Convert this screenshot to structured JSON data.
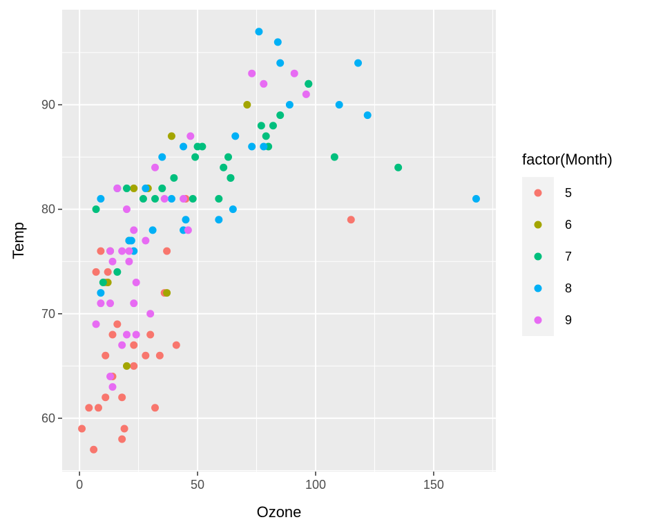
{
  "chart_data": {
    "type": "scatter",
    "title": "",
    "xlabel": "Ozone",
    "ylabel": "Temp",
    "xlim": [
      -7.35,
      176.35
    ],
    "ylim": [
      54.9,
      99.1
    ],
    "x_ticks": [
      0,
      50,
      100,
      150
    ],
    "y_ticks": [
      60,
      70,
      80,
      90
    ],
    "grid": true,
    "legend_position": "right",
    "legend_title": "factor(Month)",
    "series": [
      {
        "name": "5",
        "color": "#F8766D",
        "points": [
          [
            41,
            67
          ],
          [
            36,
            72
          ],
          [
            12,
            74
          ],
          [
            18,
            62
          ],
          [
            28,
            66
          ],
          [
            23,
            65
          ],
          [
            19,
            59
          ],
          [
            8,
            61
          ],
          [
            7,
            74
          ],
          [
            16,
            69
          ],
          [
            11,
            66
          ],
          [
            14,
            68
          ],
          [
            18,
            58
          ],
          [
            14,
            64
          ],
          [
            34,
            66
          ],
          [
            6,
            57
          ],
          [
            30,
            68
          ],
          [
            11,
            62
          ],
          [
            1,
            59
          ],
          [
            11,
            73
          ],
          [
            4,
            61
          ],
          [
            32,
            61
          ],
          [
            37,
            76
          ],
          [
            45,
            81
          ],
          [
            115,
            79
          ],
          [
            23,
            67
          ],
          [
            9,
            76
          ]
        ]
      },
      {
        "name": "6",
        "color": "#A3A500",
        "points": [
          [
            29,
            82
          ],
          [
            71,
            90
          ],
          [
            39,
            87
          ],
          [
            23,
            82
          ],
          [
            21,
            77
          ],
          [
            37,
            72
          ],
          [
            20,
            65
          ],
          [
            12,
            73
          ],
          [
            13,
            76
          ]
        ]
      },
      {
        "name": "7",
        "color": "#00BF7D",
        "points": [
          [
            135,
            84
          ],
          [
            49,
            85
          ],
          [
            32,
            81
          ],
          [
            64,
            83
          ],
          [
            40,
            83
          ],
          [
            77,
            88
          ],
          [
            97,
            92
          ],
          [
            97,
            92
          ],
          [
            85,
            89
          ],
          [
            10,
            73
          ],
          [
            27,
            81
          ],
          [
            7,
            80
          ],
          [
            48,
            81
          ],
          [
            35,
            82
          ],
          [
            61,
            84
          ],
          [
            79,
            87
          ],
          [
            63,
            85
          ],
          [
            16,
            74
          ],
          [
            80,
            86
          ],
          [
            108,
            85
          ],
          [
            20,
            82
          ],
          [
            52,
            86
          ],
          [
            82,
            88
          ],
          [
            50,
            86
          ],
          [
            64,
            83
          ],
          [
            59,
            81
          ]
        ]
      },
      {
        "name": "8",
        "color": "#00B0F6",
        "points": [
          [
            39,
            81
          ],
          [
            9,
            81
          ],
          [
            16,
            82
          ],
          [
            78,
            86
          ],
          [
            35,
            85
          ],
          [
            66,
            87
          ],
          [
            122,
            89
          ],
          [
            89,
            90
          ],
          [
            110,
            90
          ],
          [
            44,
            86
          ],
          [
            28,
            82
          ],
          [
            65,
            80
          ],
          [
            22,
            77
          ],
          [
            59,
            79
          ],
          [
            23,
            76
          ],
          [
            31,
            78
          ],
          [
            44,
            78
          ],
          [
            21,
            77
          ],
          [
            9,
            72
          ],
          [
            45,
            79
          ],
          [
            168,
            81
          ],
          [
            73,
            86
          ],
          [
            76,
            97
          ],
          [
            118,
            94
          ],
          [
            84,
            96
          ],
          [
            85,
            94
          ]
        ]
      },
      {
        "name": "9",
        "color": "#E76BF3",
        "points": [
          [
            96,
            91
          ],
          [
            78,
            92
          ],
          [
            73,
            93
          ],
          [
            91,
            93
          ],
          [
            47,
            87
          ],
          [
            32,
            84
          ],
          [
            20,
            80
          ],
          [
            23,
            78
          ],
          [
            21,
            75
          ],
          [
            24,
            73
          ],
          [
            44,
            81
          ],
          [
            21,
            76
          ],
          [
            28,
            77
          ],
          [
            9,
            71
          ],
          [
            13,
            71
          ],
          [
            46,
            78
          ],
          [
            18,
            67
          ],
          [
            13,
            76
          ],
          [
            24,
            68
          ],
          [
            16,
            82
          ],
          [
            13,
            64
          ],
          [
            23,
            71
          ],
          [
            36,
            81
          ],
          [
            7,
            69
          ],
          [
            14,
            63
          ],
          [
            30,
            70
          ],
          [
            14,
            75
          ],
          [
            18,
            76
          ],
          [
            20,
            68
          ]
        ]
      }
    ]
  }
}
